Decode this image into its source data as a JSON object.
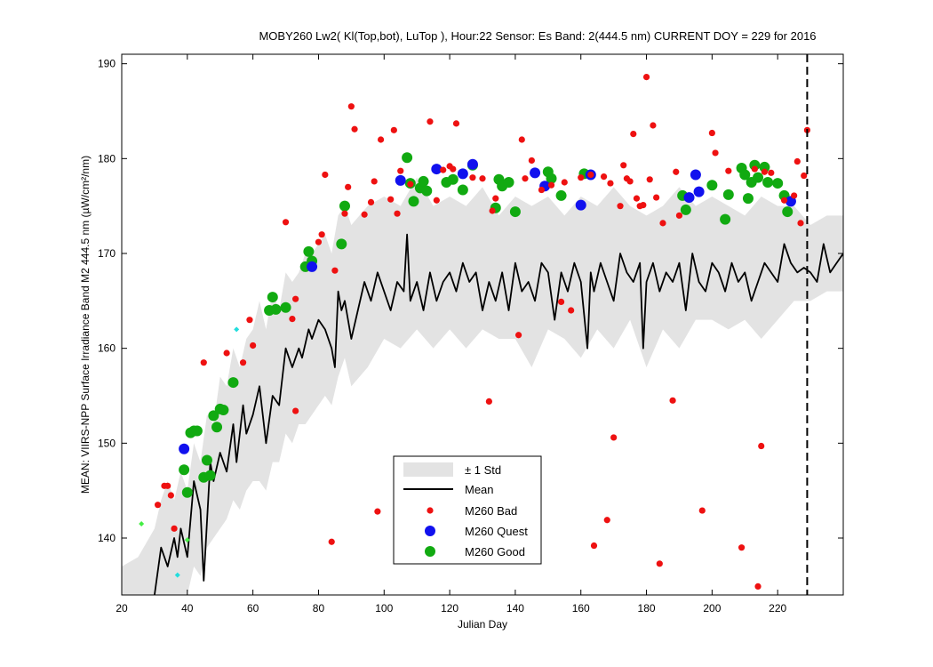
{
  "chart_data": {
    "type": "scatter",
    "title": "MOBY260   Lw2( Kl(Top,bot), LuTop ),   Hour:22 Sensor: Es Band: 2(444.5 nm)   CURRENT DOY = 229 for 2016",
    "xlabel": "Julian Day",
    "ylabel": "MEAN: VIIRS-NPP Surface Irradiance Band M2 444.5 nm (µW/cm²/nm)",
    "xlim": [
      20,
      240
    ],
    "ylim": [
      134,
      191
    ],
    "xticks": [
      20,
      40,
      60,
      80,
      100,
      120,
      140,
      160,
      180,
      200,
      220
    ],
    "yticks": [
      140,
      150,
      160,
      170,
      180,
      190
    ],
    "current_doy": 229,
    "legend_position": "bottom-center",
    "legend": [
      "± 1 Std",
      "Mean",
      "M260 Bad",
      "M260 Quest",
      "M260 Good"
    ],
    "colors": {
      "std": "#e3e3e3",
      "mean": "#000000",
      "bad": "#ee1111",
      "quest": "#1111ee",
      "good": "#11aa11",
      "cyan": "#22dddd",
      "lightgreen": "#44ee44"
    },
    "mean_series": {
      "x": [
        30,
        32,
        34,
        36,
        37,
        38,
        40,
        42,
        44,
        45,
        47,
        48,
        50,
        52,
        54,
        55,
        57,
        58,
        60,
        62,
        64,
        66,
        68,
        70,
        72,
        74,
        75,
        77,
        78,
        80,
        82,
        84,
        85,
        86,
        87,
        88,
        90,
        92,
        94,
        96,
        98,
        100,
        102,
        104,
        106,
        107,
        108,
        110,
        112,
        114,
        116,
        118,
        120,
        122,
        124,
        126,
        128,
        130,
        132,
        134,
        136,
        138,
        140,
        142,
        144,
        146,
        148,
        150,
        152,
        154,
        156,
        158,
        160,
        162,
        163,
        164,
        166,
        168,
        170,
        172,
        174,
        176,
        178,
        179,
        180,
        182,
        184,
        186,
        188,
        190,
        192,
        194,
        196,
        198,
        200,
        202,
        204,
        206,
        208,
        210,
        212,
        214,
        216,
        218,
        220,
        222,
        224,
        226,
        228,
        230,
        232,
        234,
        236,
        238,
        240
      ],
      "y": [
        134,
        139,
        137,
        140,
        138,
        141,
        138,
        146,
        143,
        135.5,
        148,
        146,
        149,
        147,
        152,
        148,
        154,
        151,
        153,
        156,
        150,
        155,
        154,
        160,
        158,
        160,
        159,
        162,
        161,
        163,
        162,
        160,
        158,
        166,
        164,
        165,
        161,
        164,
        167,
        165,
        168,
        166,
        164,
        167,
        166,
        172,
        165,
        167,
        164,
        168,
        165,
        167,
        168,
        166,
        169,
        167,
        168,
        164,
        167,
        165,
        168,
        164,
        169,
        166,
        167,
        165,
        169,
        168,
        163,
        168,
        166,
        169,
        167,
        160,
        168,
        166,
        169,
        167,
        165,
        170,
        168,
        167,
        169,
        160,
        167,
        169,
        166,
        168,
        167,
        169,
        164,
        170,
        167,
        166,
        169,
        168,
        166,
        169,
        167,
        168,
        165,
        167,
        169,
        168,
        167,
        171,
        169,
        168,
        168.5,
        168,
        167,
        171,
        168,
        169,
        170
      ]
    },
    "std_band": {
      "x": [
        20,
        25,
        30,
        32,
        34,
        36,
        38,
        40,
        42,
        44,
        46,
        48,
        50,
        52,
        54,
        56,
        58,
        60,
        62,
        64,
        66,
        68,
        70,
        72,
        74,
        76,
        78,
        80,
        82,
        84,
        86,
        88,
        90,
        95,
        100,
        105,
        110,
        115,
        120,
        125,
        130,
        135,
        140,
        145,
        150,
        155,
        160,
        165,
        170,
        175,
        180,
        185,
        190,
        195,
        200,
        205,
        210,
        215,
        220,
        225,
        230,
        235,
        240
      ],
      "low": [
        134,
        134,
        134,
        134,
        134,
        134,
        134,
        134,
        137,
        136,
        139,
        140,
        141,
        142,
        144,
        143,
        145,
        146,
        146,
        145,
        148,
        148,
        151,
        150,
        152,
        152,
        153,
        154,
        155,
        154,
        157,
        159,
        156,
        158,
        161,
        160,
        162,
        160,
        162,
        160,
        162,
        161,
        161,
        158,
        162,
        161,
        159,
        162,
        160,
        163,
        158,
        162,
        160,
        163,
        163,
        162,
        163,
        161,
        163,
        165,
        165,
        166,
        166
      ],
      "high": [
        137,
        138,
        141,
        144,
        146,
        144,
        147,
        145,
        150,
        148,
        153,
        152,
        157,
        156,
        160,
        158,
        161,
        162,
        165,
        162,
        166,
        164,
        168,
        167,
        168,
        170,
        170,
        171,
        172,
        170,
        174,
        175,
        173,
        175,
        176,
        175,
        178,
        175,
        176,
        175,
        177,
        174,
        176,
        175,
        176,
        174,
        176,
        175,
        177,
        175,
        174,
        175,
        177,
        175,
        176,
        175,
        174,
        176,
        175,
        175,
        173,
        174,
        174
      ]
    },
    "bad_points": {
      "x": [
        31,
        33,
        34,
        35,
        36,
        45,
        52,
        57,
        59,
        60,
        70,
        72,
        73,
        73,
        80,
        81,
        82,
        84,
        85,
        88,
        89,
        90,
        91,
        94,
        96,
        97,
        98,
        99,
        102,
        103,
        104,
        105,
        108,
        114,
        116,
        118,
        120,
        121,
        122,
        127,
        130,
        132,
        133,
        134,
        141,
        142,
        143,
        145,
        148,
        151,
        154,
        155,
        157,
        160,
        163,
        164,
        167,
        168,
        169,
        170,
        172,
        173,
        174,
        175,
        176,
        177,
        178,
        179,
        180,
        181,
        182,
        183,
        184,
        185,
        188,
        189,
        190,
        197,
        200,
        201,
        205,
        209,
        213,
        214,
        215,
        216,
        218,
        222,
        225,
        226,
        227,
        228,
        229
      ],
      "y": [
        143.5,
        145.5,
        145.5,
        144.5,
        141,
        158.5,
        159.5,
        158.5,
        163,
        160.3,
        173.3,
        163.1,
        165.2,
        153.4,
        171.2,
        172,
        178.3,
        139.6,
        168.2,
        174.2,
        177,
        185.5,
        183.1,
        174.1,
        175.4,
        177.6,
        142.8,
        182,
        175.7,
        183,
        174.2,
        178.7,
        177.3,
        183.9,
        175.6,
        178.8,
        179.2,
        178.9,
        183.7,
        178,
        177.9,
        154.4,
        174.5,
        175.8,
        161.4,
        182,
        177.9,
        179.8,
        176.7,
        177.2,
        164.9,
        177.5,
        164,
        178,
        178.3,
        139.2,
        178.1,
        141.9,
        177.4,
        150.6,
        175,
        179.3,
        177.9,
        177.6,
        182.6,
        175.8,
        175,
        175.1,
        188.6,
        177.8,
        183.5,
        175.9,
        137.3,
        173.2,
        154.5,
        178.6,
        174,
        142.9,
        182.7,
        180.6,
        178.7,
        139,
        178.9,
        134.9,
        149.7,
        178.6,
        178.5,
        175.6,
        176.1,
        179.7,
        173.2,
        178.2,
        183
      ]
    },
    "quest_points": {
      "x": [
        39,
        78,
        105,
        116,
        124,
        127,
        146,
        149,
        160,
        163,
        193,
        195,
        196,
        224
      ],
      "y": [
        149.4,
        168.6,
        177.7,
        178.9,
        178.4,
        179.4,
        178.5,
        177.1,
        175.1,
        178.3,
        175.9,
        178.3,
        176.5,
        175.5
      ]
    },
    "good_points": {
      "x": [
        39,
        40,
        41,
        42,
        43,
        45,
        46,
        47,
        48,
        49,
        50,
        51,
        54,
        65,
        66,
        67,
        70,
        76,
        77,
        78,
        87,
        88,
        107,
        108,
        109,
        111,
        112,
        113,
        119,
        121,
        124,
        127,
        134,
        135,
        136,
        138,
        140,
        150,
        151,
        154,
        161,
        191,
        192,
        200,
        204,
        205,
        209,
        210,
        211,
        212,
        213,
        214,
        216,
        217,
        220,
        222,
        223
      ],
      "y": [
        147.2,
        144.8,
        151.1,
        151.3,
        151.3,
        146.4,
        148.2,
        146.6,
        152.9,
        151.7,
        153.6,
        153.5,
        156.4,
        164,
        165.4,
        164.1,
        164.3,
        168.6,
        170.2,
        169.2,
        171,
        175,
        180.1,
        177.4,
        175.5,
        176.9,
        177.6,
        176.6,
        177.5,
        177.8,
        176.7,
        179.3,
        174.8,
        177.8,
        177.1,
        177.5,
        174.4,
        178.6,
        177.9,
        176.1,
        178.4,
        176.1,
        174.6,
        177.2,
        173.6,
        176.2,
        179,
        178.3,
        175.8,
        177.5,
        179.3,
        178,
        179.1,
        177.5,
        177.4,
        176.1,
        174.4
      ]
    },
    "cyan_points": {
      "x": [
        37,
        55
      ],
      "y": [
        136.1,
        162
      ]
    },
    "lightgreen_points": {
      "x": [
        26,
        40
      ],
      "y": [
        141.5,
        139.8
      ]
    }
  }
}
